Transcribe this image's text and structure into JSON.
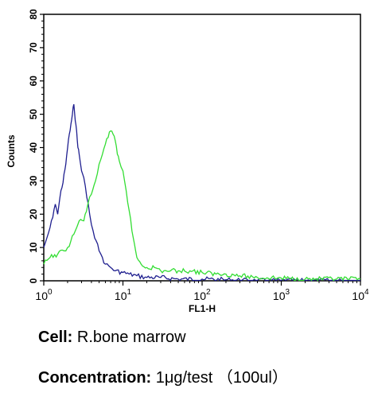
{
  "chart_data": {
    "type": "line",
    "title": "",
    "xlabel": "FL1-H",
    "ylabel": "Counts",
    "x_scale": "log",
    "xlim": [
      1,
      10000
    ],
    "ylim": [
      0,
      80
    ],
    "x_ticks": [
      {
        "base": "10",
        "exp": "0"
      },
      {
        "base": "10",
        "exp": "1"
      },
      {
        "base": "10",
        "exp": "2"
      },
      {
        "base": "10",
        "exp": "3"
      },
      {
        "base": "10",
        "exp": "4"
      }
    ],
    "y_ticks": [
      "0",
      "10",
      "20",
      "30",
      "40",
      "50",
      "60",
      "70",
      "80"
    ],
    "grid": false,
    "legend": "none",
    "series": [
      {
        "color": "#1f1f8f",
        "x": [
          1.0,
          1.1,
          1.2,
          1.3,
          1.4,
          1.5,
          1.6,
          1.7,
          1.8,
          1.9,
          2.0,
          2.1,
          2.2,
          2.3,
          2.4,
          2.5,
          2.6,
          2.7,
          2.8,
          3.0,
          3.2,
          3.5,
          3.8,
          4.2,
          4.6,
          5.0,
          5.5,
          6.0,
          7.0,
          8.0,
          10,
          12,
          15,
          20,
          30,
          50,
          100,
          200,
          500,
          1000,
          10000
        ],
        "y": [
          10,
          13,
          16,
          19,
          23,
          20,
          25,
          28,
          32,
          35,
          40,
          44,
          47,
          50,
          53,
          48,
          45,
          40,
          38,
          33,
          31,
          25,
          20,
          15,
          12,
          9,
          7,
          5,
          4,
          3,
          2.5,
          2,
          1.5,
          1,
          1,
          0.5,
          0.5,
          0.3,
          0,
          0,
          0
        ]
      },
      {
        "color": "#33dd33",
        "x": [
          1.0,
          1.2,
          1.5,
          1.8,
          2.0,
          2.2,
          2.5,
          2.8,
          3.2,
          3.6,
          4.0,
          4.5,
          5.0,
          5.5,
          6.0,
          6.5,
          7.0,
          7.5,
          8.0,
          8.5,
          9.0,
          10,
          11,
          12,
          13,
          14,
          15,
          17,
          20,
          25,
          30,
          40,
          50,
          70,
          100,
          150,
          200,
          300,
          500,
          1000,
          2000,
          5000,
          10000
        ],
        "y": [
          5,
          7,
          8,
          9,
          10,
          12,
          15,
          18,
          18,
          23,
          26,
          30,
          35,
          38,
          41,
          43,
          45,
          44,
          42,
          38,
          36,
          33,
          27,
          21,
          15,
          11,
          7,
          5,
          4,
          4,
          3,
          3,
          3,
          3,
          2.5,
          2,
          2,
          1.5,
          1,
          0.8,
          0.5,
          0.5,
          0.5
        ]
      }
    ]
  },
  "captions": {
    "cell_label": "Cell:",
    "cell_value": " R.bone marrow",
    "conc_label": "Concentration:",
    "conc_value": " 1μg/test （100ul）"
  }
}
